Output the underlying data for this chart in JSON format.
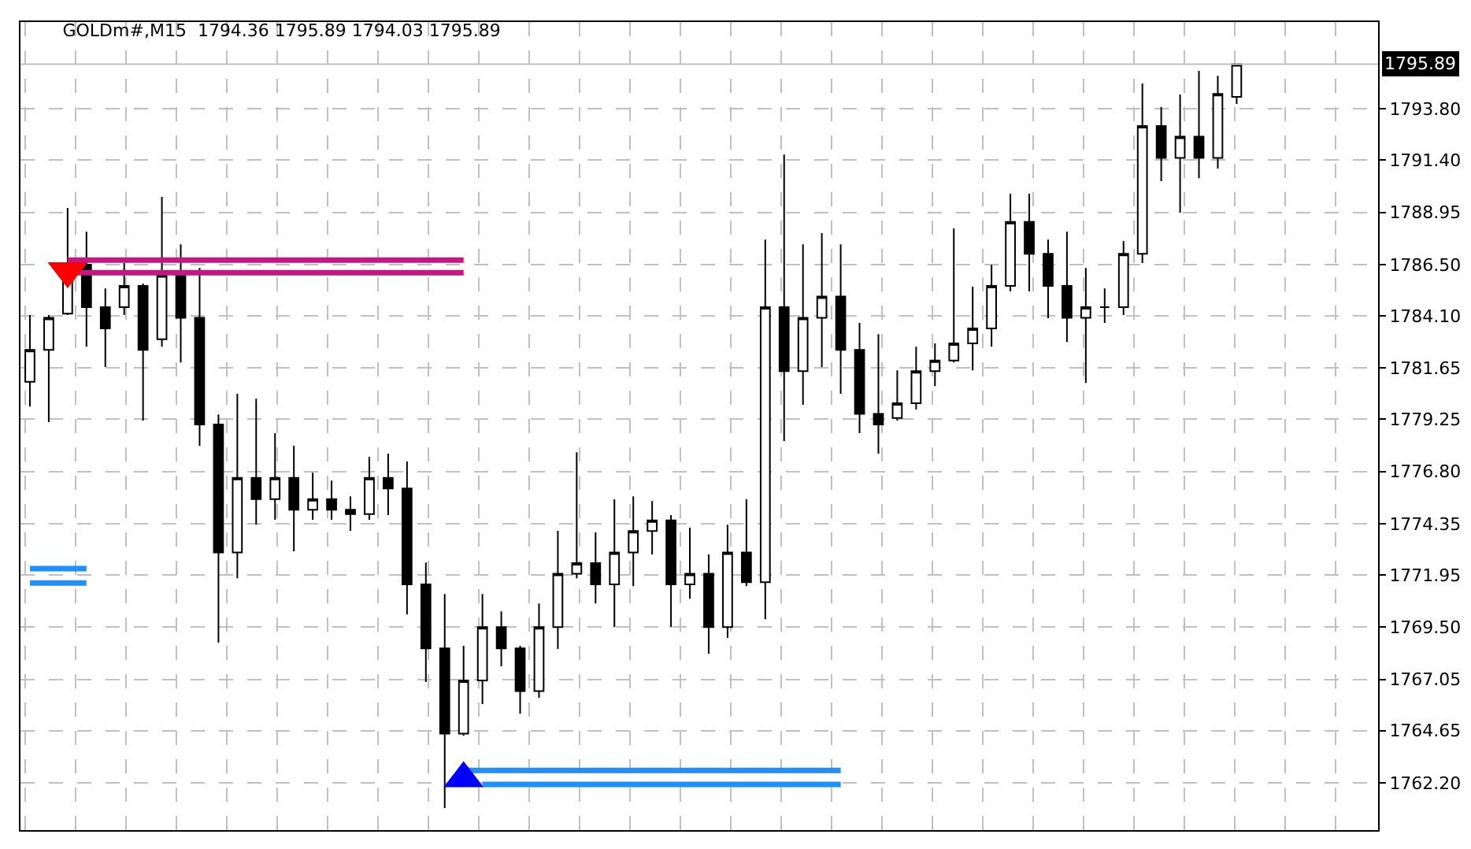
{
  "chart_data": {
    "type": "candlestick",
    "title": "GOLDm#,M15  1794.36 1795.89 1794.03 1795.89",
    "color": "#000000",
    "categories": [
      null,
      null,
      null,
      null,
      null,
      null,
      null,
      null,
      null,
      null,
      null,
      null,
      null,
      null,
      null,
      null,
      null,
      null,
      null,
      null,
      null,
      null,
      null,
      null,
      null,
      null,
      null,
      null,
      null,
      null,
      null,
      null,
      null,
      null,
      null,
      null,
      null,
      null,
      null,
      null,
      null,
      null,
      null,
      null,
      null,
      null,
      null,
      null,
      null,
      null,
      null,
      null,
      null,
      null,
      null,
      null,
      null,
      null,
      null,
      null,
      null,
      null,
      null,
      null,
      null,
      null,
      null,
      null,
      null,
      null,
      null,
      null
    ],
    "ohlc": [
      [
        1781.0,
        1784.13,
        1779.84,
        1782.5
      ],
      [
        1782.5,
        1784.13,
        1779.11,
        1784.0
      ],
      [
        1784.2,
        1789.15,
        1784.13,
        1786.5
      ],
      [
        1786.5,
        1788.04,
        1782.65,
        1784.5
      ],
      [
        1784.5,
        1785.38,
        1781.69,
        1783.5
      ],
      [
        1784.5,
        1786.57,
        1784.13,
        1785.5
      ],
      [
        1785.5,
        1785.61,
        1779.18,
        1782.5
      ],
      [
        1783.0,
        1789.67,
        1782.65,
        1786.0
      ],
      [
        1786.0,
        1787.45,
        1781.91,
        1784.0
      ],
      [
        1784.0,
        1786.34,
        1778.0,
        1779.0
      ],
      [
        1779.0,
        1779.47,
        1768.77,
        1773.0
      ],
      [
        1773.0,
        1780.44,
        1771.79,
        1776.5
      ],
      [
        1776.5,
        1780.21,
        1774.3,
        1775.5
      ],
      [
        1775.5,
        1778.59,
        1774.53,
        1776.5
      ],
      [
        1776.5,
        1778.0,
        1773.05,
        1775.0
      ],
      [
        1775.0,
        1776.74,
        1774.53,
        1775.5
      ],
      [
        1775.5,
        1776.37,
        1774.53,
        1775.0
      ],
      [
        1775.0,
        1775.63,
        1774.01,
        1774.8
      ],
      [
        1774.8,
        1777.48,
        1774.53,
        1776.5
      ],
      [
        1776.5,
        1777.63,
        1774.75,
        1776.0
      ],
      [
        1776.0,
        1777.26,
        1770.09,
        1771.5
      ],
      [
        1771.5,
        1772.53,
        1766.92,
        1768.5
      ],
      [
        1768.5,
        1771.05,
        1761.01,
        1764.5
      ],
      [
        1764.5,
        1768.62,
        1764.41,
        1767.0
      ],
      [
        1767.0,
        1771.05,
        1765.89,
        1769.5
      ],
      [
        1769.5,
        1770.24,
        1767.66,
        1768.5
      ],
      [
        1768.5,
        1768.62,
        1765.44,
        1766.5
      ],
      [
        1766.5,
        1770.61,
        1766.18,
        1769.5
      ],
      [
        1769.5,
        1774.01,
        1768.47,
        1772.0
      ],
      [
        1772.0,
        1777.7,
        1771.79,
        1772.5
      ],
      [
        1772.5,
        1773.94,
        1770.61,
        1771.5
      ],
      [
        1771.5,
        1775.49,
        1769.5,
        1773.0
      ],
      [
        1773.0,
        1775.63,
        1771.42,
        1774.0
      ],
      [
        1774.0,
        1775.41,
        1772.91,
        1774.5
      ],
      [
        1774.5,
        1774.75,
        1769.5,
        1771.5
      ],
      [
        1771.5,
        1774.16,
        1770.83,
        1772.0
      ],
      [
        1772.0,
        1772.91,
        1768.25,
        1769.5
      ],
      [
        1769.5,
        1774.3,
        1768.99,
        1773.0
      ],
      [
        1773.0,
        1775.49,
        1771.42,
        1771.6
      ],
      [
        1771.6,
        1787.67,
        1769.87,
        1784.5
      ],
      [
        1784.5,
        1791.66,
        1778.22,
        1781.5
      ],
      [
        1781.5,
        1787.45,
        1779.92,
        1784.0
      ],
      [
        1784.0,
        1787.97,
        1781.69,
        1785.0
      ],
      [
        1785.0,
        1787.45,
        1780.44,
        1782.5
      ],
      [
        1782.5,
        1783.76,
        1778.59,
        1779.5
      ],
      [
        1779.5,
        1783.24,
        1777.63,
        1779.0
      ],
      [
        1779.3,
        1781.54,
        1779.18,
        1780.0
      ],
      [
        1780.0,
        1782.65,
        1779.7,
        1781.5
      ],
      [
        1781.5,
        1782.8,
        1780.8,
        1782.0
      ],
      [
        1782.0,
        1788.19,
        1781.91,
        1782.8
      ],
      [
        1782.8,
        1785.46,
        1781.54,
        1783.5
      ],
      [
        1783.5,
        1786.49,
        1782.65,
        1785.5
      ],
      [
        1785.5,
        1789.82,
        1785.24,
        1788.5
      ],
      [
        1788.5,
        1789.82,
        1785.24,
        1787.0
      ],
      [
        1787.0,
        1787.67,
        1783.98,
        1785.5
      ],
      [
        1785.5,
        1788.04,
        1782.87,
        1784.0
      ],
      [
        1784.0,
        1786.34,
        1780.95,
        1784.5
      ],
      [
        1784.5,
        1785.38,
        1783.76,
        1784.5
      ],
      [
        1784.5,
        1787.6,
        1784.13,
        1787.0
      ],
      [
        1787.0,
        1794.99,
        1786.57,
        1793.0
      ],
      [
        1793.0,
        1793.88,
        1790.41,
        1791.5
      ],
      [
        1791.5,
        1794.47,
        1788.93,
        1792.5
      ],
      [
        1792.5,
        1795.58,
        1790.55,
        1791.5
      ],
      [
        1791.5,
        1795.35,
        1791.0,
        1794.5
      ],
      [
        1794.36,
        1795.89,
        1794.03,
        1795.89
      ],
      null,
      null,
      null,
      null,
      null,
      null,
      null
    ],
    "series": [
      {
        "type": "line",
        "color": "#c71585",
        "line_style": "solid",
        "values": [
          null,
          null,
          1786.71,
          1786.71,
          1786.71,
          1786.71,
          1786.71,
          1786.71,
          1786.71,
          1786.71,
          1786.71,
          1786.71,
          1786.71,
          1786.71,
          1786.71,
          1786.71,
          1786.71,
          1786.71,
          1786.71,
          1786.71,
          1786.71,
          1786.71,
          1786.71,
          1786.71,
          null,
          null,
          null,
          null,
          null,
          null,
          null,
          null,
          null,
          null,
          null,
          null,
          null,
          null,
          null,
          null,
          null,
          null,
          null,
          null,
          null,
          null,
          null,
          null,
          null,
          null,
          null,
          null,
          null,
          null,
          null,
          null,
          null,
          null,
          null,
          null,
          null,
          null,
          null,
          null,
          null,
          null,
          null,
          null,
          null,
          null,
          null,
          null
        ]
      },
      {
        "type": "line",
        "color": "#c71585",
        "line_style": "solid",
        "values": [
          null,
          null,
          1786.12,
          1786.12,
          1786.12,
          1786.12,
          1786.12,
          1786.12,
          1786.12,
          1786.12,
          1786.12,
          1786.12,
          1786.12,
          1786.12,
          1786.12,
          1786.12,
          1786.12,
          1786.12,
          1786.12,
          1786.12,
          1786.12,
          1786.12,
          1786.12,
          1786.12,
          null,
          null,
          null,
          null,
          null,
          null,
          null,
          null,
          null,
          null,
          null,
          null,
          null,
          null,
          null,
          null,
          null,
          null,
          null,
          null,
          null,
          null,
          null,
          null,
          null,
          null,
          null,
          null,
          null,
          null,
          null,
          null,
          null,
          null,
          null,
          null,
          null,
          null,
          null,
          null,
          null,
          null,
          null,
          null,
          null,
          null,
          null,
          null
        ]
      },
      {
        "type": "line",
        "color": "#1e90ff",
        "line_style": "solid",
        "values": [
          1772.24,
          1772.24,
          1772.24,
          1772.24,
          null,
          null,
          null,
          null,
          null,
          null,
          null,
          null,
          null,
          null,
          null,
          null,
          null,
          null,
          null,
          null,
          null,
          null,
          null,
          null,
          null,
          null,
          null,
          null,
          null,
          null,
          null,
          null,
          null,
          null,
          null,
          null,
          null,
          null,
          null,
          null,
          null,
          null,
          null,
          null,
          null,
          null,
          null,
          null,
          null,
          null,
          null,
          null,
          null,
          null,
          null,
          null,
          null,
          null,
          null,
          null,
          null,
          null,
          null,
          null,
          null,
          null,
          null,
          null,
          null,
          null,
          null,
          null
        ]
      },
      {
        "type": "line",
        "color": "#1e90ff",
        "line_style": "solid",
        "values": [
          1771.57,
          1771.57,
          1771.57,
          1771.57,
          null,
          null,
          null,
          null,
          null,
          null,
          null,
          null,
          null,
          null,
          null,
          null,
          null,
          null,
          null,
          null,
          null,
          null,
          null,
          null,
          null,
          null,
          null,
          null,
          null,
          null,
          null,
          null,
          null,
          null,
          null,
          null,
          null,
          null,
          null,
          null,
          null,
          null,
          null,
          null,
          null,
          null,
          null,
          null,
          null,
          null,
          null,
          null,
          null,
          null,
          null,
          null,
          null,
          null,
          null,
          null,
          null,
          null,
          null,
          null,
          null,
          null,
          null,
          null,
          null,
          null,
          null,
          null
        ]
      },
      {
        "type": "line",
        "color": "#1e90ff",
        "line_style": "solid",
        "values": [
          null,
          null,
          null,
          null,
          null,
          null,
          null,
          null,
          null,
          null,
          null,
          null,
          null,
          null,
          null,
          null,
          null,
          null,
          null,
          null,
          null,
          null,
          null,
          1762.78,
          1762.78,
          1762.78,
          1762.78,
          1762.78,
          1762.78,
          1762.78,
          1762.78,
          1762.78,
          1762.78,
          1762.78,
          1762.78,
          1762.78,
          1762.78,
          1762.78,
          1762.78,
          1762.78,
          1762.78,
          1762.78,
          1762.78,
          1762.78,
          null,
          null,
          null,
          null,
          null,
          null,
          null,
          null,
          null,
          null,
          null,
          null,
          null,
          null,
          null,
          null,
          null,
          null,
          null,
          null,
          null,
          null,
          null,
          null,
          null,
          null,
          null,
          null
        ]
      },
      {
        "type": "line",
        "color": "#1e90ff",
        "line_style": "solid",
        "values": [
          null,
          null,
          null,
          null,
          null,
          null,
          null,
          null,
          null,
          null,
          null,
          null,
          null,
          null,
          null,
          null,
          null,
          null,
          null,
          null,
          null,
          null,
          null,
          null,
          1762.12,
          1762.12,
          1762.12,
          1762.12,
          1762.12,
          1762.12,
          1762.12,
          1762.12,
          1762.12,
          1762.12,
          1762.12,
          1762.12,
          1762.12,
          1762.12,
          1762.12,
          1762.12,
          1762.12,
          1762.12,
          1762.12,
          1762.12,
          null,
          null,
          null,
          null,
          null,
          null,
          null,
          null,
          null,
          null,
          null,
          null,
          null,
          null,
          null,
          null,
          null,
          null,
          null,
          null,
          null,
          null,
          null,
          null,
          null,
          null,
          null,
          null
        ]
      },
      {
        "type": "scatter",
        "color": "#ff0000",
        "marker": "triangle-down",
        "values": [
          null,
          null,
          1786.2,
          null,
          null,
          null,
          null,
          null,
          null,
          null,
          null,
          null,
          null,
          null,
          null,
          null,
          null,
          null,
          null,
          null,
          null,
          null,
          null,
          null,
          null,
          null,
          null,
          null,
          null,
          null,
          null,
          null,
          null,
          null,
          null,
          null,
          null,
          null,
          null,
          null,
          null,
          null,
          null,
          null,
          null,
          null,
          null,
          null,
          null,
          null,
          null,
          null,
          null,
          null,
          null,
          null,
          null,
          null,
          null,
          null,
          null,
          null,
          null,
          null,
          null,
          null,
          null,
          null,
          null,
          null,
          null,
          null
        ]
      },
      {
        "type": "scatter",
        "color": "#0000ff",
        "marker": "triangle",
        "values": [
          null,
          null,
          null,
          null,
          null,
          null,
          null,
          null,
          null,
          null,
          null,
          null,
          null,
          null,
          null,
          null,
          null,
          null,
          null,
          null,
          null,
          null,
          null,
          1762.4,
          null,
          null,
          null,
          null,
          null,
          null,
          null,
          null,
          null,
          null,
          null,
          null,
          null,
          null,
          null,
          null,
          null,
          null,
          null,
          null,
          null,
          null,
          null,
          null,
          null,
          null,
          null,
          null,
          null,
          null,
          null,
          null,
          null,
          null,
          null,
          null,
          null,
          null,
          null,
          null,
          null,
          null,
          null,
          null,
          null,
          null,
          null,
          null
        ]
      }
    ],
    "ylim": [
      1759.98,
      1797.87
    ],
    "yticks": [
      {
        "value": 1762.2,
        "label": "1762.20"
      },
      {
        "value": 1764.65,
        "label": "1764.65"
      },
      {
        "value": 1767.05,
        "label": "1767.05"
      },
      {
        "value": 1769.5,
        "label": "1769.50"
      },
      {
        "value": 1771.95,
        "label": "1771.95"
      },
      {
        "value": 1774.35,
        "label": "1774.35"
      },
      {
        "value": 1776.8,
        "label": "1776.80"
      },
      {
        "value": 1779.25,
        "label": "1779.25"
      },
      {
        "value": 1781.65,
        "label": "1781.65"
      },
      {
        "value": 1784.1,
        "label": "1784.10"
      },
      {
        "value": 1786.5,
        "label": "1786.50"
      },
      {
        "value": 1788.95,
        "label": "1788.95"
      },
      {
        "value": 1791.4,
        "label": "1791.40"
      },
      {
        "value": 1793.8,
        "label": "1793.80"
      }
    ],
    "ref_lines": [
      {
        "axis": "y",
        "value": 1795.89,
        "label": "1795.89",
        "color": "#c0c0c0",
        "line_style": "solid"
      }
    ],
    "grid": true,
    "tick_labels": "y"
  }
}
